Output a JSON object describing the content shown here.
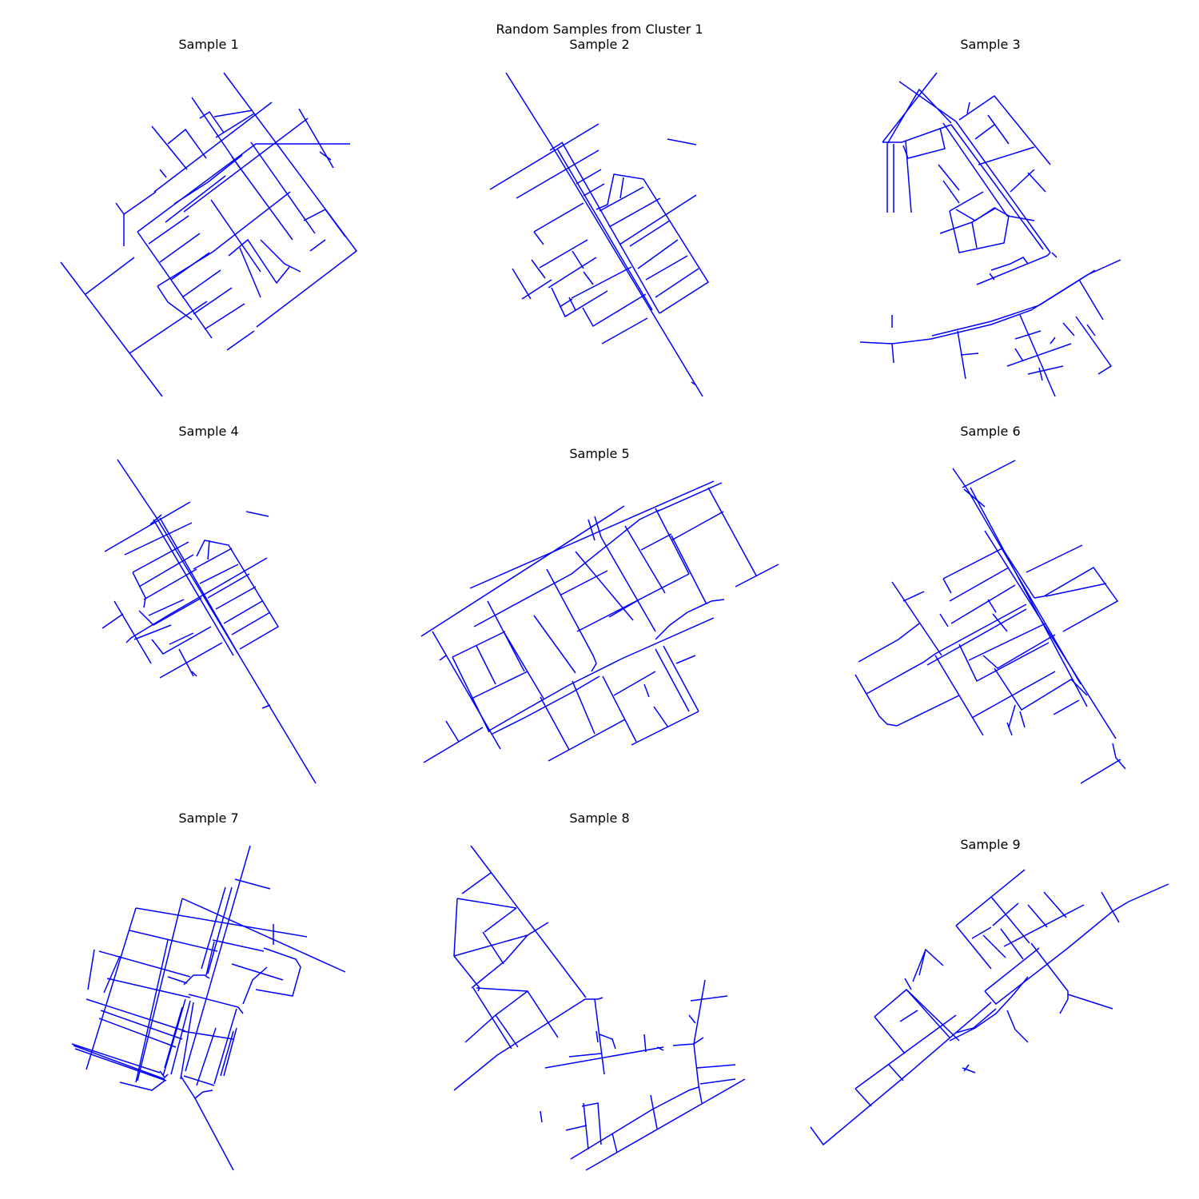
{
  "figure": {
    "title": "Random Samples from Cluster 1",
    "line_color": "#0000ff",
    "samples": [
      {
        "label": "Sample 1"
      },
      {
        "label": "Sample 2"
      },
      {
        "label": "Sample 3"
      },
      {
        "label": "Sample 4"
      },
      {
        "label": "Sample 5"
      },
      {
        "label": "Sample 6"
      },
      {
        "label": "Sample 7"
      },
      {
        "label": "Sample 8"
      },
      {
        "label": "Sample 9"
      }
    ]
  }
}
